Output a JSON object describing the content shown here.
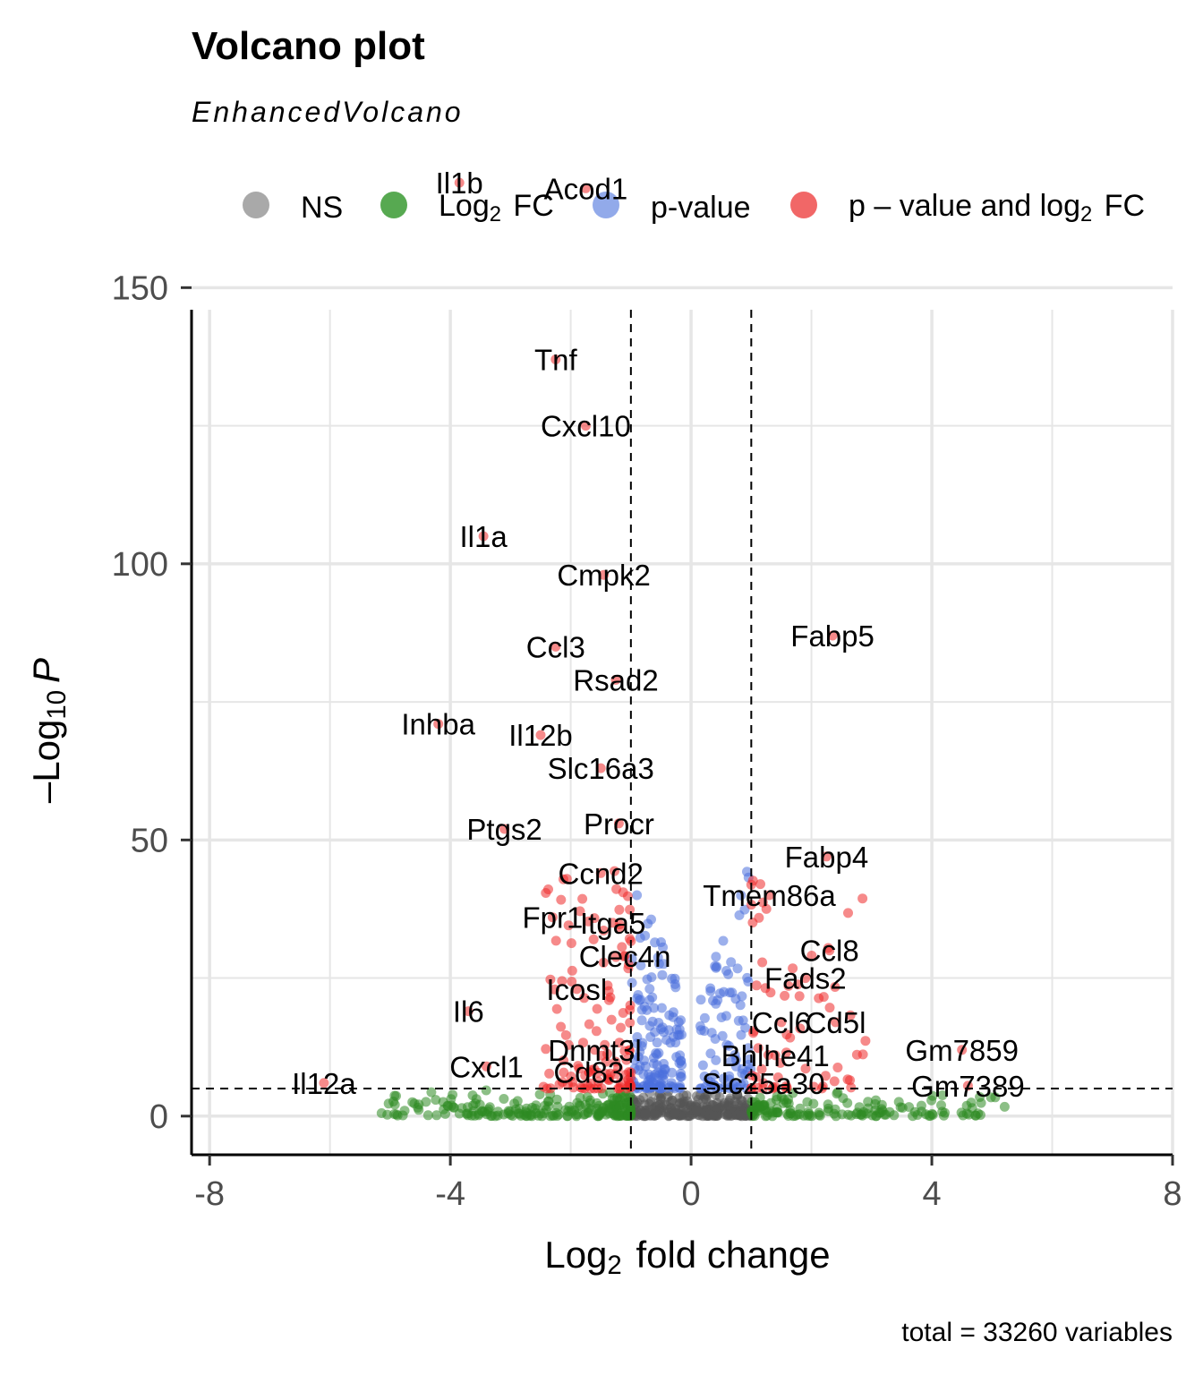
{
  "chart_data": {
    "type": "scatter",
    "title": "Volcano plot",
    "subtitle": "EnhancedVolcano",
    "caption": "total = 33260 variables",
    "xlabel": {
      "base": "Log",
      "sub": "2",
      "rest": " fold change"
    },
    "ylabel": {
      "prefix": "–Log",
      "sub": "10",
      "italic": "P"
    },
    "xlim": [
      -8.3,
      8
    ],
    "ylim": [
      -7,
      146
    ],
    "x_ticks": [
      -8,
      -4,
      0,
      4,
      8
    ],
    "x_tick_labels": [
      "-8",
      "-4",
      "0",
      "4",
      "8"
    ],
    "y_ticks": [
      0,
      50,
      100,
      150
    ],
    "y_tick_labels": [
      "0",
      "50",
      "100",
      "150"
    ],
    "grid": true,
    "fc_cutoff": 1,
    "p_cutoff_neglog10": 5,
    "legend": {
      "position": "top",
      "entries": [
        {
          "key": "ns",
          "label": "NS",
          "color": "#9a9a9a"
        },
        {
          "key": "fc",
          "label": "Log",
          "sub": "2",
          "rest": " FC",
          "color": "#3a9a32"
        },
        {
          "key": "p",
          "label": "p-value",
          "color": "#7f9be6"
        },
        {
          "key": "both",
          "label": "p – value and log",
          "sub": "2",
          "rest": " FC",
          "color": "#ee4c4c"
        }
      ]
    },
    "colors": {
      "ns": "#555555",
      "fc": "#2e8b22",
      "p": "#4a6fdc",
      "both": "#ee2a2a",
      "grid": "#e6e6e6"
    },
    "series": [
      {
        "name": "Il1b",
        "x": -3.85,
        "y": 169,
        "group": "both",
        "label": true
      },
      {
        "name": "Acod1",
        "x": -1.75,
        "y": 168,
        "group": "both",
        "label": true
      },
      {
        "name": "Tnf",
        "x": -2.25,
        "y": 137,
        "group": "both",
        "label": true
      },
      {
        "name": "Cxcl10",
        "x": -1.75,
        "y": 125,
        "group": "both",
        "label": true
      },
      {
        "name": "Il1a",
        "x": -3.45,
        "y": 105,
        "group": "both",
        "label": true
      },
      {
        "name": "Cmpk2",
        "x": -1.45,
        "y": 98,
        "group": "both",
        "label": true
      },
      {
        "name": "Fabp5",
        "x": 2.35,
        "y": 87,
        "group": "both",
        "label": true
      },
      {
        "name": "Ccl3",
        "x": -2.25,
        "y": 85,
        "group": "both",
        "label": true
      },
      {
        "name": "Rsad2",
        "x": -1.25,
        "y": 79,
        "group": "both",
        "label": true
      },
      {
        "name": "Inhba",
        "x": -4.2,
        "y": 71,
        "group": "both",
        "label": true
      },
      {
        "name": "Il12b",
        "x": -2.5,
        "y": 69,
        "group": "both",
        "label": true
      },
      {
        "name": "Slc16a3",
        "x": -1.5,
        "y": 63,
        "group": "both",
        "label": true
      },
      {
        "name": "Procr",
        "x": -1.2,
        "y": 53,
        "group": "both",
        "label": true
      },
      {
        "name": "Ptgs2",
        "x": -3.1,
        "y": 52,
        "group": "both",
        "label": true
      },
      {
        "name": "Fabp4",
        "x": 2.25,
        "y": 47,
        "group": "both",
        "label": true
      },
      {
        "name": "Ccnd2",
        "x": -1.5,
        "y": 44,
        "group": "both",
        "label": true
      },
      {
        "name": "Tmem86a",
        "x": 1.3,
        "y": 40,
        "group": "both",
        "label": true
      },
      {
        "name": "Fpr1",
        "x": -2.3,
        "y": 36,
        "group": "both",
        "label": true
      },
      {
        "name": "Itga5",
        "x": -1.3,
        "y": 35,
        "group": "both",
        "label": true
      },
      {
        "name": "Ccl8",
        "x": 2.3,
        "y": 30,
        "group": "both",
        "label": true
      },
      {
        "name": "Clec4n",
        "x": -1.1,
        "y": 29,
        "group": "both",
        "label": true
      },
      {
        "name": "Fads2",
        "x": 1.9,
        "y": 25,
        "group": "both",
        "label": true
      },
      {
        "name": "Icosl",
        "x": -1.9,
        "y": 23,
        "group": "both",
        "label": true
      },
      {
        "name": "Il6",
        "x": -3.7,
        "y": 19,
        "group": "both",
        "label": true
      },
      {
        "name": "Ccl6",
        "x": 1.5,
        "y": 17,
        "group": "both",
        "label": true
      },
      {
        "name": "Cd5l",
        "x": 2.4,
        "y": 17,
        "group": "both",
        "label": true
      },
      {
        "name": "Gm7859",
        "x": 4.5,
        "y": 12,
        "group": "both",
        "label": true
      },
      {
        "name": "Dnmt3l",
        "x": -1.6,
        "y": 12,
        "group": "both",
        "label": true
      },
      {
        "name": "Bhlhe41",
        "x": 1.4,
        "y": 11,
        "group": "both",
        "label": true
      },
      {
        "name": "Cxcl1",
        "x": -3.4,
        "y": 9,
        "group": "both",
        "label": true
      },
      {
        "name": "Cd83",
        "x": -1.7,
        "y": 8,
        "group": "both",
        "label": true
      },
      {
        "name": "Slc25a30",
        "x": 1.2,
        "y": 6,
        "group": "both",
        "label": true
      },
      {
        "name": "Il12a",
        "x": -6.1,
        "y": 6,
        "group": "both",
        "label": true
      },
      {
        "name": "Gm7389",
        "x": 4.6,
        "y": 5.5,
        "group": "both",
        "label": true
      }
    ]
  }
}
